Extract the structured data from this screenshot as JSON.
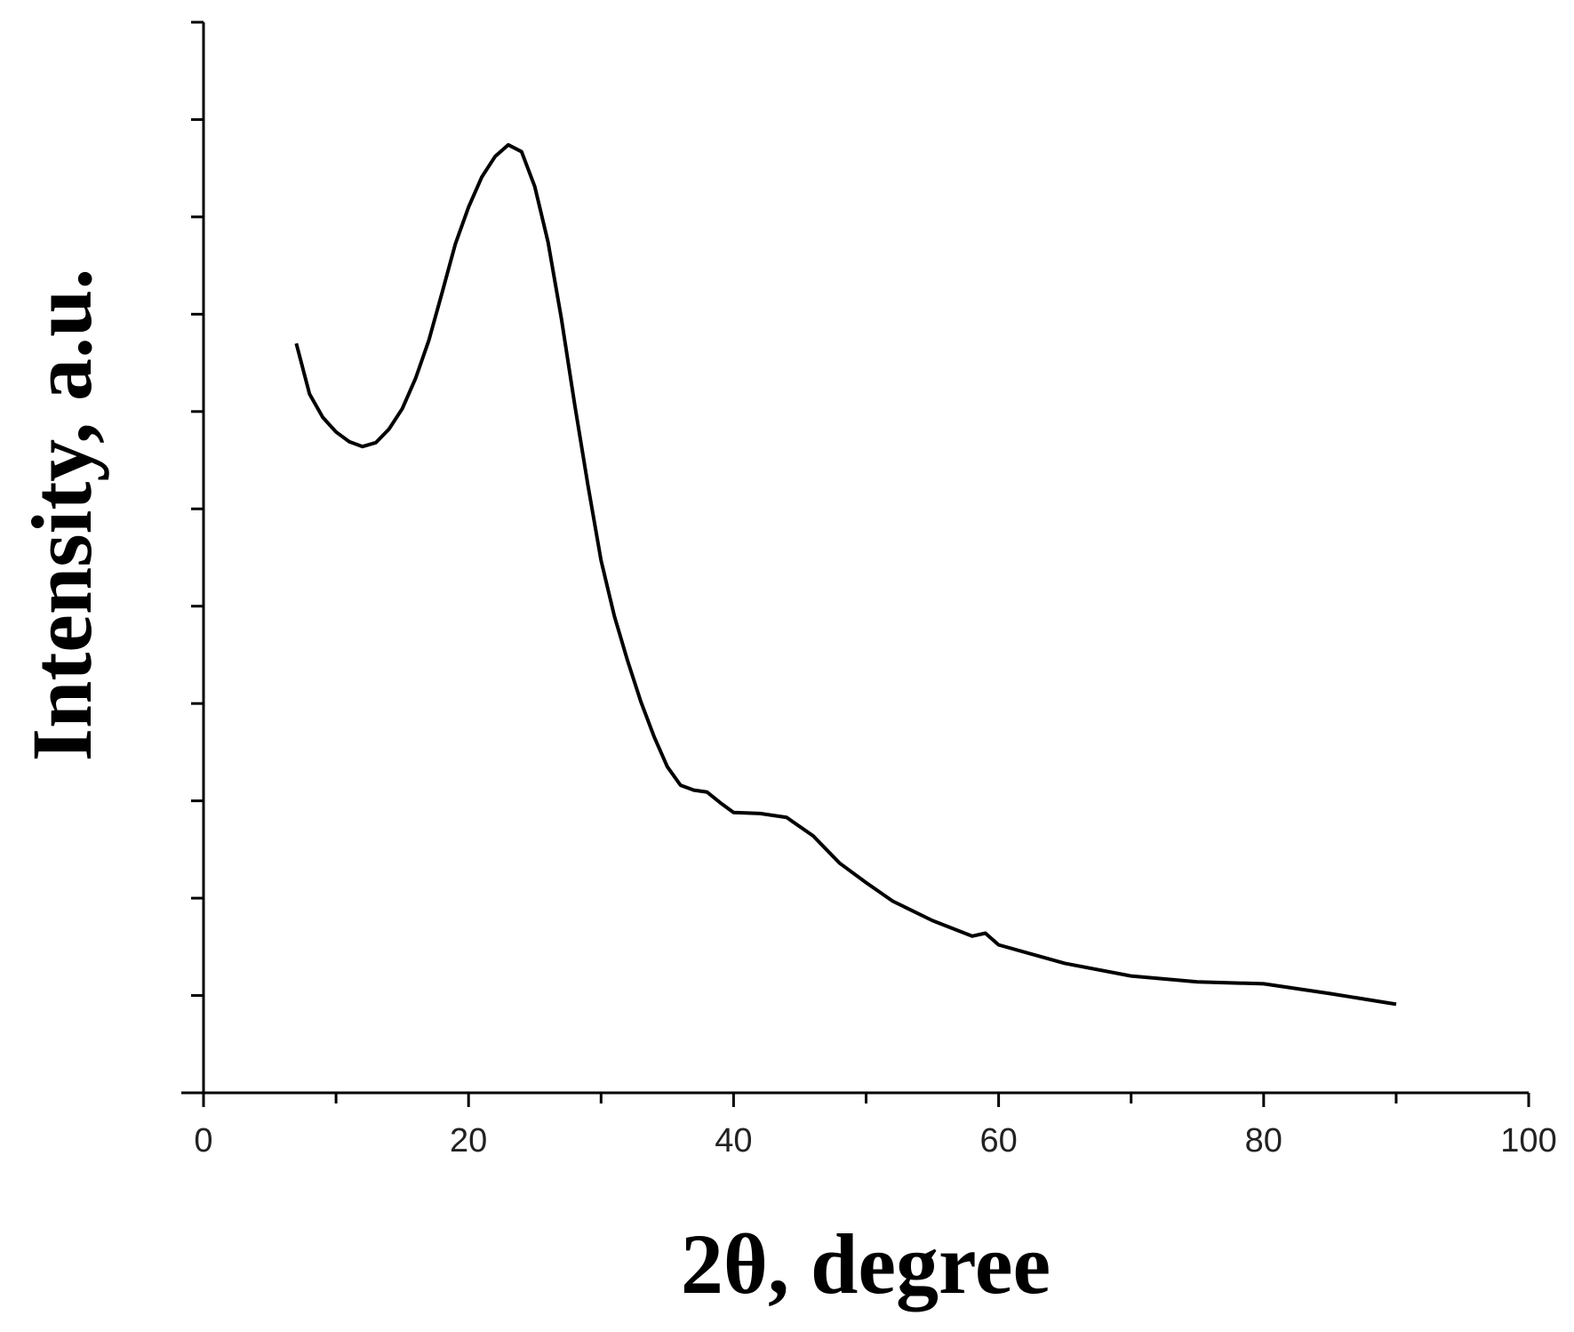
{
  "chart_data": {
    "type": "line",
    "x_label": "2θ, degree",
    "y_label": "Intensity, a.u.",
    "color": "#000000",
    "xlim": [
      0,
      100
    ],
    "xticks": [
      0,
      20,
      40,
      60,
      80,
      100
    ],
    "xminor_ticks": [
      10,
      30,
      50,
      70,
      90
    ],
    "ylim": [
      0,
      11
    ],
    "yticks": [
      1,
      2,
      3,
      4,
      5,
      6,
      7,
      8,
      9,
      10,
      11
    ],
    "ytick_labels": false,
    "grid": false,
    "x": [
      7,
      8,
      9,
      10,
      11,
      12,
      13,
      14,
      15,
      16,
      17,
      18,
      19,
      20,
      21,
      22,
      23,
      24,
      25,
      26,
      27,
      28,
      29,
      30,
      31,
      32,
      33,
      34,
      35,
      36,
      37,
      38,
      39,
      40,
      42,
      44,
      46,
      48,
      50,
      52,
      55,
      58,
      59,
      60,
      65,
      70,
      75,
      80,
      85,
      90
    ],
    "series": [
      {
        "values": [
          7.7,
          7.18,
          6.94,
          6.79,
          6.69,
          6.64,
          6.68,
          6.82,
          7.03,
          7.34,
          7.73,
          8.22,
          8.72,
          9.1,
          9.41,
          9.62,
          9.74,
          9.67,
          9.31,
          8.74,
          7.96,
          7.08,
          6.25,
          5.47,
          4.9,
          4.44,
          4.02,
          3.66,
          3.35,
          3.16,
          3.11,
          3.09,
          2.98,
          2.88,
          2.87,
          2.83,
          2.64,
          2.36,
          2.16,
          1.97,
          1.77,
          1.61,
          1.64,
          1.52,
          1.33,
          1.2,
          1.14,
          1.12,
          1.02,
          0.91
        ]
      }
    ]
  }
}
